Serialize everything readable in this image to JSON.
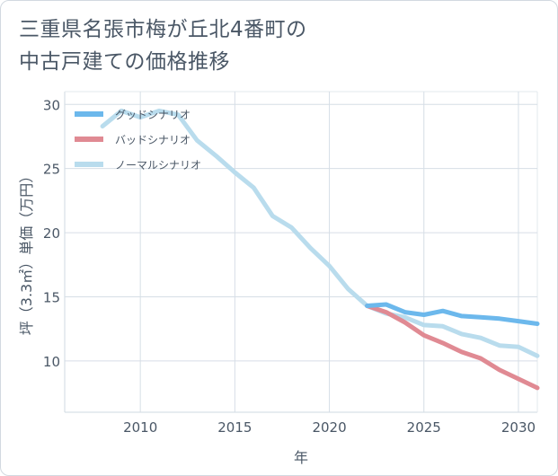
{
  "title_line1": "三重県名張市梅が丘北4番町の",
  "title_line2": "中古戸建ての価格推移",
  "chart_data": {
    "type": "line",
    "title": "三重県名張市梅が丘北4番町の中古戸建ての価格推移",
    "xlabel": "年",
    "ylabel": "坪（3.3㎡）単価（万円）",
    "xlim": [
      2006,
      2031
    ],
    "ylim": [
      6,
      31
    ],
    "xticks": [
      2010,
      2015,
      2020,
      2025,
      2030
    ],
    "yticks": [
      10,
      15,
      20,
      25,
      30
    ],
    "grid": true,
    "legend_position": "top-left",
    "series": [
      {
        "name": "グッドシナリオ",
        "color": "#6cb8ec",
        "points": [
          [
            2022,
            14.3
          ],
          [
            2023,
            14.4
          ],
          [
            2024,
            13.8
          ],
          [
            2025,
            13.6
          ],
          [
            2026,
            13.9
          ],
          [
            2027,
            13.5
          ],
          [
            2028,
            13.4
          ],
          [
            2029,
            13.3
          ],
          [
            2030,
            13.1
          ],
          [
            2031,
            12.9
          ]
        ]
      },
      {
        "name": "バッドシナリオ",
        "color": "#e08a93",
        "points": [
          [
            2022,
            14.3
          ],
          [
            2023,
            13.8
          ],
          [
            2024,
            13.0
          ],
          [
            2025,
            12.0
          ],
          [
            2026,
            11.4
          ],
          [
            2027,
            10.7
          ],
          [
            2028,
            10.2
          ],
          [
            2029,
            9.3
          ],
          [
            2030,
            8.6
          ],
          [
            2031,
            7.9
          ]
        ]
      },
      {
        "name": "ノーマルシナリオ",
        "color": "#b9dced",
        "points": [
          [
            2008,
            28.3
          ],
          [
            2009,
            29.5
          ],
          [
            2010,
            29.0
          ],
          [
            2011,
            29.5
          ],
          [
            2012,
            29.2
          ],
          [
            2013,
            27.2
          ],
          [
            2014,
            26.0
          ],
          [
            2015,
            24.7
          ],
          [
            2016,
            23.5
          ],
          [
            2017,
            21.3
          ],
          [
            2018,
            20.4
          ],
          [
            2019,
            18.8
          ],
          [
            2020,
            17.4
          ],
          [
            2021,
            15.6
          ],
          [
            2022,
            14.3
          ],
          [
            2023,
            13.7
          ],
          [
            2024,
            13.4
          ],
          [
            2025,
            12.8
          ],
          [
            2026,
            12.7
          ],
          [
            2027,
            12.1
          ],
          [
            2028,
            11.8
          ],
          [
            2029,
            11.2
          ],
          [
            2030,
            11.1
          ],
          [
            2031,
            10.4
          ]
        ]
      }
    ]
  }
}
